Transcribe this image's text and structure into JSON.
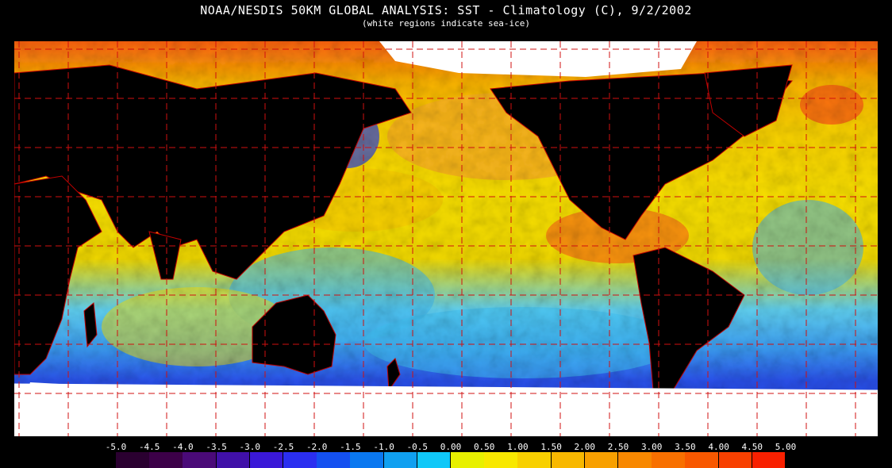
{
  "header": {
    "title": "NOAA/NESDIS 50KM GLOBAL ANALYSIS: SST - Climatology (C), 9/2/2002",
    "subtitle": "(white regions indicate sea-ice)"
  },
  "colorbar": {
    "labels": [
      "-5.0",
      "-4.5",
      "-4.0",
      "-3.5",
      "-3.0",
      "-2.5",
      "-2.0",
      "-1.5",
      "-1.0",
      "-0.5",
      "0.00",
      "0.50",
      "1.00",
      "1.50",
      "2.00",
      "2.50",
      "3.00",
      "3.50",
      "4.00",
      "4.50",
      "5.00"
    ],
    "colors": [
      "#2a0030",
      "#3c0048",
      "#4a0a78",
      "#4010a8",
      "#3a18d8",
      "#2a2ef0",
      "#1450f0",
      "#0a78f0",
      "#10a0f0",
      "#10c8f8",
      "#e8f000",
      "#f8e800",
      "#f8d000",
      "#f8b800",
      "#f8a000",
      "#f88800",
      "#f87000",
      "#f85800",
      "#f84000",
      "#f82000"
    ]
  },
  "map": {
    "ocean_palette": {
      "cold": "#1a8cf0",
      "cool": "#40d0f8",
      "neutral": "#f8f000",
      "warm": "#f8b000",
      "hot": "#f86000"
    },
    "land_color": "#000000",
    "ice_color": "#ffffff",
    "border_color": "#c00000",
    "graticule_color": "#d01010"
  }
}
